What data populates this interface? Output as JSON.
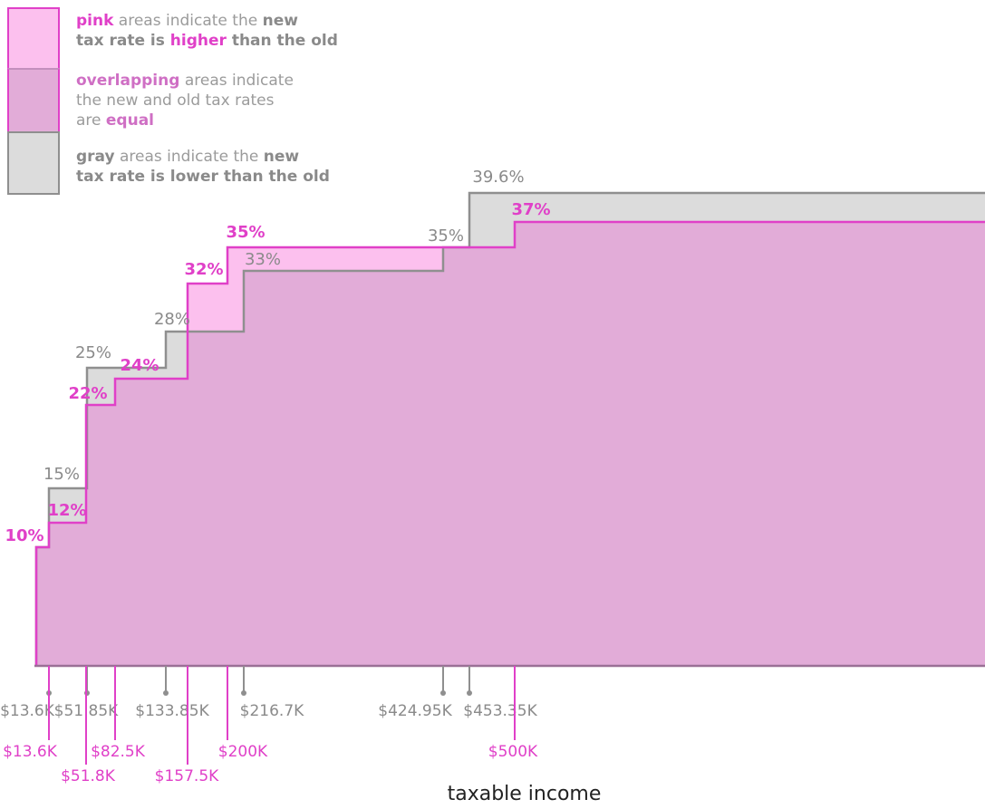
{
  "legend": {
    "pink": {
      "part1": "pink",
      "part2": " areas indicate the ",
      "part3": "new",
      "line2a": "tax rate is ",
      "line2b": "higher",
      "line2c": " than the old",
      "color": "#fcc0ee"
    },
    "overlap": {
      "part1": "overlapping",
      "part2": " areas indicate",
      "line2": "the new and old tax rates",
      "line3a": "are ",
      "line3b": "equal",
      "color": "#e2acd8"
    },
    "gray": {
      "part1": "gray",
      "part2": " areas indicate the ",
      "part3": "new",
      "line2a": "tax rate is ",
      "line2b": "lower",
      "line2c": " than the old",
      "color": "#dcdcdc"
    }
  },
  "chart_data": {
    "type": "area",
    "xlabel": "taxable income",
    "ylabel": "",
    "ylim": [
      0,
      40
    ],
    "series": [
      {
        "name": "old",
        "color": "#8f8f8f",
        "brackets": [
          {
            "start": 0,
            "end": 13600,
            "rate": 10,
            "label": ""
          },
          {
            "start": 13600,
            "end": 51850,
            "rate": 15,
            "label": "15%"
          },
          {
            "start": 51850,
            "end": 133850,
            "rate": 25,
            "label": "25%"
          },
          {
            "start": 133850,
            "end": 216700,
            "rate": 28,
            "label": "28%"
          },
          {
            "start": 216700,
            "end": 424950,
            "rate": 33,
            "label": "33%"
          },
          {
            "start": 424950,
            "end": 453350,
            "rate": 35,
            "label": "35%"
          },
          {
            "start": 453350,
            "end": null,
            "rate": 39.6,
            "label": "39.6%"
          }
        ],
        "threshold_labels": [
          "$13.6K",
          "$51.85K",
          "$133.85K",
          "$216.7K",
          "$424.95K",
          "$453.35K"
        ]
      },
      {
        "name": "new",
        "color": "#e040c8",
        "brackets": [
          {
            "start": 0,
            "end": 13600,
            "rate": 10,
            "label": "10%"
          },
          {
            "start": 13600,
            "end": 51800,
            "rate": 12,
            "label": "12%"
          },
          {
            "start": 51800,
            "end": 82500,
            "rate": 22,
            "label": "22%"
          },
          {
            "start": 82500,
            "end": 157500,
            "rate": 24,
            "label": "24%"
          },
          {
            "start": 157500,
            "end": 200000,
            "rate": 32,
            "label": "32%"
          },
          {
            "start": 200000,
            "end": 500000,
            "rate": 35,
            "label": "35%"
          },
          {
            "start": 500000,
            "end": null,
            "rate": 37,
            "label": "37%"
          }
        ],
        "threshold_labels": [
          "$13.6K",
          "$51.8K",
          "$82.5K",
          "$157.5K",
          "$200K",
          "$500K"
        ]
      }
    ]
  }
}
